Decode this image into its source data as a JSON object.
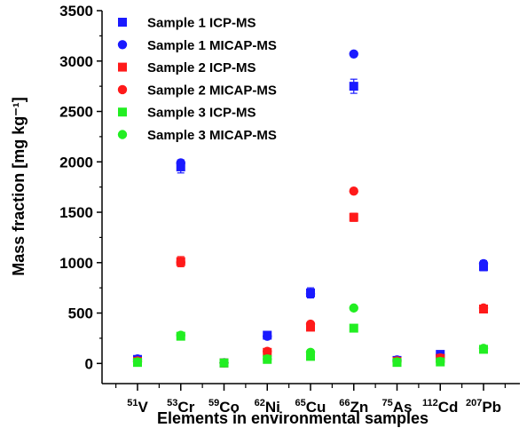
{
  "chart_data": {
    "type": "scatter",
    "xlabel": "Elements in environmental samples",
    "ylabel": "Mass fraction [mg kg⁻¹]",
    "ylim": [
      -200,
      3500
    ],
    "yticks": [
      0,
      500,
      1000,
      1500,
      2000,
      2500,
      3000,
      3500
    ],
    "grid": false,
    "legend_position": "top-left",
    "categories": [
      {
        "mass": "51",
        "symbol": "V"
      },
      {
        "mass": "53",
        "symbol": "Cr"
      },
      {
        "mass": "59",
        "symbol": "Co"
      },
      {
        "mass": "62",
        "symbol": "Ni"
      },
      {
        "mass": "65",
        "symbol": "Cu"
      },
      {
        "mass": "66",
        "symbol": "Zn"
      },
      {
        "mass": "75",
        "symbol": "As"
      },
      {
        "mass": "112",
        "symbol": "Cd"
      },
      {
        "mass": "207",
        "symbol": "Pb"
      }
    ],
    "series": [
      {
        "name": "Sample 1 ICP-MS",
        "marker": "square",
        "color": "#1a1aff",
        "values": [
          40,
          1950,
          5,
          280,
          700,
          2750,
          30,
          90,
          960
        ],
        "errors": [
          10,
          60,
          5,
          30,
          50,
          70,
          5,
          10,
          40
        ]
      },
      {
        "name": "Sample 1 MICAP-MS",
        "marker": "circle",
        "color": "#1a1aff",
        "values": [
          45,
          1990,
          8,
          270,
          690,
          3070,
          35,
          85,
          990
        ],
        "errors": [
          10,
          30,
          5,
          20,
          30,
          20,
          5,
          10,
          30
        ]
      },
      {
        "name": "Sample 2 ICP-MS",
        "marker": "square",
        "color": "#ff1a1a",
        "values": [
          20,
          1010,
          5,
          110,
          360,
          1450,
          20,
          50,
          540
        ],
        "errors": [
          5,
          50,
          5,
          20,
          30,
          40,
          5,
          10,
          30
        ]
      },
      {
        "name": "Sample 2 MICAP-MS",
        "marker": "circle",
        "color": "#ff1a1a",
        "values": [
          25,
          1000,
          5,
          120,
          390,
          1710,
          25,
          55,
          550
        ],
        "errors": [
          5,
          20,
          5,
          15,
          20,
          20,
          5,
          10,
          20
        ]
      },
      {
        "name": "Sample 3 ICP-MS",
        "marker": "square",
        "color": "#22ee22",
        "values": [
          10,
          270,
          5,
          40,
          70,
          350,
          10,
          15,
          140
        ],
        "errors": [
          5,
          20,
          5,
          10,
          10,
          15,
          5,
          5,
          10
        ]
      },
      {
        "name": "Sample 3 MICAP-MS",
        "marker": "circle",
        "color": "#22ee22",
        "values": [
          15,
          280,
          5,
          45,
          110,
          550,
          15,
          20,
          150
        ],
        "errors": [
          5,
          15,
          5,
          10,
          10,
          15,
          5,
          5,
          10
        ]
      }
    ]
  }
}
